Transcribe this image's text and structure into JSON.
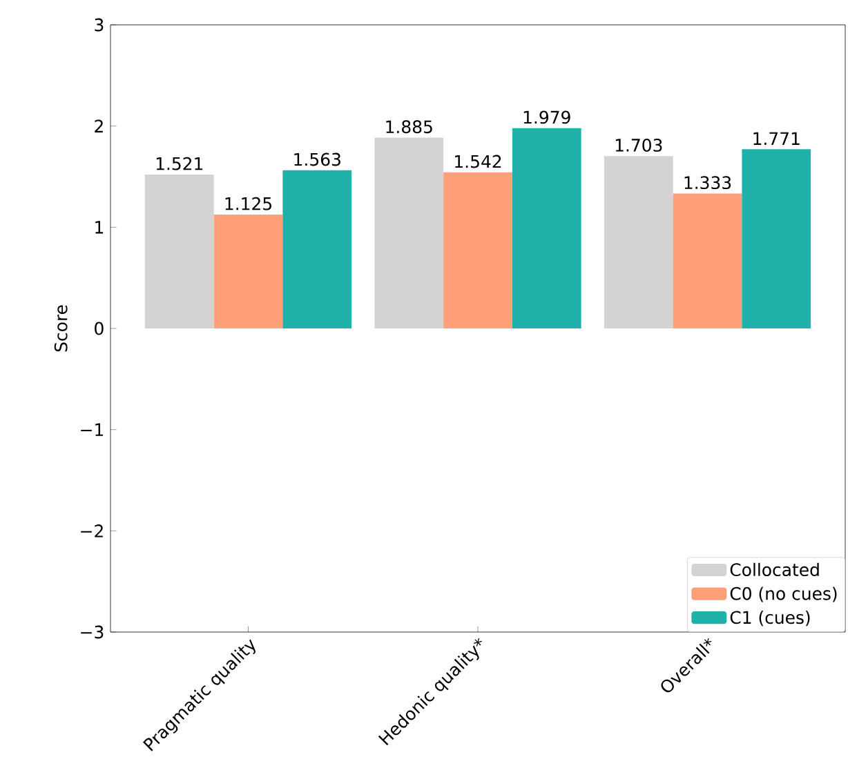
{
  "chart_data": {
    "type": "bar",
    "ylabel": "Score",
    "categories": [
      "Pragmatic quality",
      "Hedonic quality*",
      "Overall*"
    ],
    "series": [
      {
        "name": "Collocated",
        "color": "#d3d3d3",
        "values": [
          1.521,
          1.885,
          1.703
        ]
      },
      {
        "name": "C0 (no cues)",
        "color": "#ffa07a",
        "values": [
          1.125,
          1.542,
          1.333
        ]
      },
      {
        "name": "C1 (cues)",
        "color": "#20b2aa",
        "values": [
          1.563,
          1.979,
          1.771
        ]
      }
    ],
    "ylim": [
      -3,
      3
    ],
    "yticks": [
      {
        "value": -3,
        "label": "−3"
      },
      {
        "value": -2,
        "label": "−2"
      },
      {
        "value": -1,
        "label": "−1"
      },
      0,
      1,
      2,
      3
    ],
    "data_labels": true,
    "grid": false,
    "legend": "bottom right"
  }
}
